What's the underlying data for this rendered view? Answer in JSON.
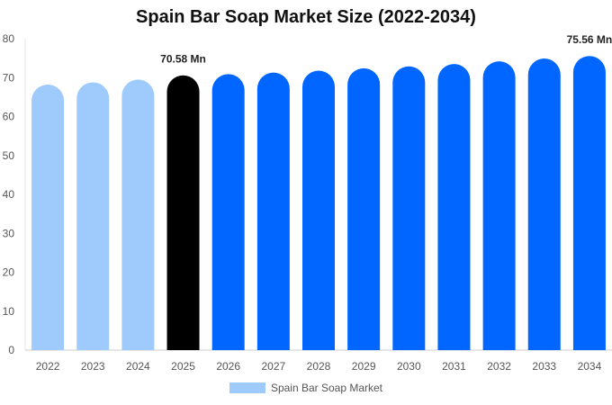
{
  "chart_data": {
    "type": "bar",
    "title": "Spain Bar Soap Market Size (2022-2034)",
    "xlabel": "",
    "ylabel": "",
    "categories": [
      "2022",
      "2023",
      "2024",
      "2025",
      "2026",
      "2027",
      "2028",
      "2029",
      "2030",
      "2031",
      "2032",
      "2033",
      "2034"
    ],
    "series": [
      {
        "name": "Spain Bar Soap Market",
        "values": [
          68.2,
          68.8,
          69.5,
          70.58,
          70.9,
          71.3,
          71.8,
          72.4,
          72.9,
          73.5,
          74.2,
          74.9,
          75.56
        ]
      }
    ],
    "bar_colors": [
      "#9ecbfb",
      "#9ecbfb",
      "#9ecbfb",
      "#000000",
      "#0066ff",
      "#0066ff",
      "#0066ff",
      "#0066ff",
      "#0066ff",
      "#0066ff",
      "#0066ff",
      "#0066ff",
      "#0066ff"
    ],
    "data_labels": [
      {
        "category": "2025",
        "text": "70.58 Mn"
      },
      {
        "category": "2034",
        "text": "75.56 Mn"
      }
    ],
    "y_ticks": [
      0,
      10,
      20,
      30,
      40,
      50,
      60,
      70,
      80
    ],
    "ylim": [
      0,
      80
    ],
    "grid": false,
    "legend_position": "bottom",
    "legend_color": "#9ecbfb"
  }
}
